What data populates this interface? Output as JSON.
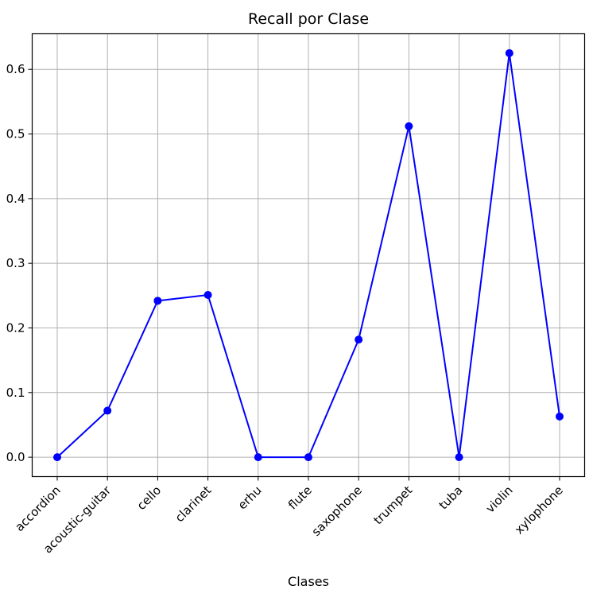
{
  "chart_data": {
    "type": "line",
    "title": "Recall por Clase",
    "xlabel": "Clases",
    "ylabel": "",
    "categories": [
      "accordion",
      "acoustic-guitar",
      "cello",
      "clarinet",
      "erhu",
      "flute",
      "saxophone",
      "trumpet",
      "tuba",
      "violin",
      "xylophone"
    ],
    "series": [
      {
        "values": [
          0.0,
          0.072,
          0.242,
          0.251,
          0.0,
          0.0,
          0.182,
          0.512,
          0.0,
          0.625,
          0.063
        ]
      }
    ],
    "yticks": [
      "0.0",
      "0.1",
      "0.2",
      "0.3",
      "0.4",
      "0.5",
      "0.6"
    ],
    "ylim": [
      -0.03,
      0.655
    ],
    "grid": true,
    "line_color": "#0000ff",
    "marker": "circle"
  }
}
